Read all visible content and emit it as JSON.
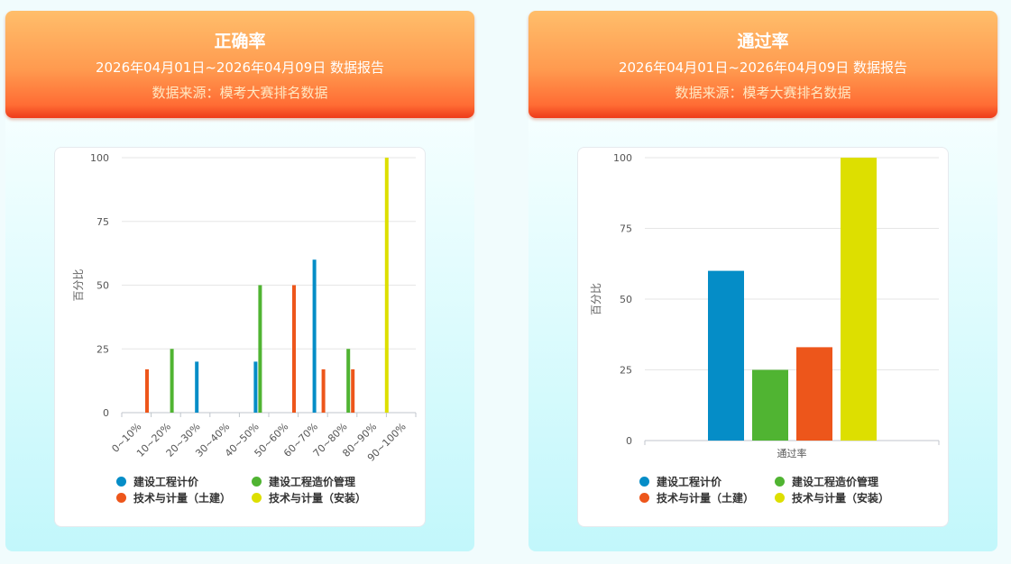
{
  "panels": [
    {
      "title": "正确率",
      "subtitle": "2026年04月01日~2026年04月09日 数据报告",
      "source": "数据来源：模考大赛排名数据"
    },
    {
      "title": "通过率",
      "subtitle": "2026年04月01日~2026年04月09日 数据报告",
      "source": "数据来源：模考大赛排名数据"
    }
  ],
  "legend": [
    {
      "label": "建设工程计价",
      "color": "#058dc7"
    },
    {
      "label": "建设工程造价管理",
      "color": "#50b432"
    },
    {
      "label": "技术与计量（土建）",
      "color": "#ed561b"
    },
    {
      "label": "技术与计量（安装）",
      "color": "#dddf00"
    }
  ],
  "chart_data": [
    {
      "type": "bar",
      "ylabel": "百分比",
      "xlabel": "",
      "ylim": [
        0,
        100
      ],
      "yticks": [
        0,
        25,
        50,
        75,
        100
      ],
      "categories": [
        "0~10%",
        "10~20%",
        "20~30%",
        "30~40%",
        "40~50%",
        "50~60%",
        "60~70%",
        "70~80%",
        "80~90%",
        "90~100%"
      ],
      "series": [
        {
          "name": "建设工程计价",
          "values": [
            0,
            0,
            20,
            0,
            20,
            0,
            60,
            0,
            0,
            0
          ]
        },
        {
          "name": "建设工程造价管理",
          "values": [
            0,
            25,
            0,
            0,
            50,
            0,
            0,
            25,
            0,
            0
          ]
        },
        {
          "name": "技术与计量（土建）",
          "values": [
            17,
            0,
            0,
            0,
            0,
            50,
            17,
            17,
            0,
            0
          ]
        },
        {
          "name": "技术与计量（安装）",
          "values": [
            0,
            0,
            0,
            0,
            0,
            0,
            0,
            0,
            100,
            0
          ]
        }
      ]
    },
    {
      "type": "bar",
      "ylabel": "百分比",
      "xlabel": "",
      "ylim": [
        0,
        100
      ],
      "yticks": [
        0,
        25,
        50,
        75,
        100
      ],
      "categories": [
        "通过率"
      ],
      "series": [
        {
          "name": "建设工程计价",
          "values": [
            60
          ]
        },
        {
          "name": "建设工程造价管理",
          "values": [
            25
          ]
        },
        {
          "name": "技术与计量（土建）",
          "values": [
            33
          ]
        },
        {
          "name": "技术与计量（安装）",
          "values": [
            100
          ]
        }
      ]
    }
  ]
}
